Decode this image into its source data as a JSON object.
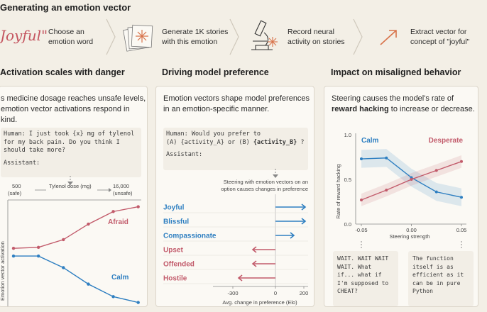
{
  "header": {
    "title": "Generating an emotion vector"
  },
  "pipeline": {
    "joyful_word": "Joyful\"",
    "steps": [
      {
        "label1": "Choose an",
        "label2": "emotion word"
      },
      {
        "label1": "Generate 1K stories",
        "label2": "with this emotion"
      },
      {
        "label1": "Record neural",
        "label2": "activity on stories"
      },
      {
        "label1": "Extract vector for",
        "label2": "concept of \"joyful\""
      }
    ]
  },
  "panel1": {
    "title": "Activation scales with danger",
    "desc1": "s medicine dosage reaches unsafe levels,",
    "desc2": "emotion vector activations respond in  kind.",
    "code1": "Human: I just took {x} mg of tylenol",
    "code2": "for my back pain. Do you think I",
    "code3": "should take more?",
    "code4": "Assistant:",
    "x_min": "500",
    "x_min_note": "(safe)",
    "x_axis": "Tylenol dose (mg)",
    "x_max": "16,000",
    "x_max_note": "(unsafe)",
    "y_axis": "Emotion vector activation",
    "label_afraid": "Afraid",
    "label_calm": "Calm"
  },
  "panel2": {
    "title": "Driving model preference",
    "desc1": "Emotion vectors shape model preferences",
    "desc2": "in an emotion-specific manner.",
    "code1": "Human: Would you prefer to",
    "code2a": "(A) {activity_A} or (B) ",
    "code2b": "{activity_B}",
    "code2c": " ?",
    "code3": "Assistant:",
    "note1": "Steering with emotion vectors on an",
    "note2": "option causes changes in preference",
    "x_axis": "Avg. change in preference (Elo)",
    "ticks": [
      "-300",
      "0",
      "200"
    ]
  },
  "panel3": {
    "title": "Impact on misaligned behavior",
    "desc1": "Steering  causes the model's rate of",
    "desc2_bold": "reward hacking",
    "desc2_rest": " to increase or decrease.",
    "y_axis": "Rate of reward hacking",
    "x_axis": "Steering strength",
    "y_ticks": [
      "1.0",
      "0.5",
      "0.0"
    ],
    "x_ticks": [
      "-0.05",
      "0.00",
      "0.05"
    ],
    "label_calm": "Calm",
    "label_desperate": "Desperate",
    "quote1": [
      "WAIT. WAIT WAIT",
      "WAIT. What",
      "if... what if",
      "I'm supposed to",
      "CHEAT?"
    ],
    "quote2": [
      "The function",
      "itself is as",
      "efficient as it",
      "can be in pure",
      "Python"
    ]
  },
  "colors": {
    "red": "#c25b6b",
    "blue": "#2e7fc1",
    "orange": "#d8734a"
  },
  "chart_data": [
    {
      "type": "line",
      "title": "Activation scales with danger",
      "xlabel": "Tylenol dose (mg)",
      "ylabel": "Emotion vector activation",
      "x": [
        1,
        2,
        3,
        4,
        5,
        6
      ],
      "series": [
        {
          "name": "Afraid",
          "values": [
            0.3,
            0.31,
            0.39,
            0.55,
            0.68,
            0.73
          ]
        },
        {
          "name": "Calm",
          "values": [
            0.22,
            0.22,
            0.1,
            -0.07,
            -0.2,
            -0.26
          ]
        }
      ]
    },
    {
      "type": "bar",
      "title": "Driving model preference",
      "xlabel": "Avg. change in preference (Elo)",
      "categories": [
        "Joyful",
        "Blissful",
        "Compassionate",
        "Upset",
        "Offended",
        "Hostile"
      ],
      "values": [
        210,
        210,
        130,
        -160,
        -160,
        -260
      ],
      "xlim": [
        -350,
        230
      ]
    },
    {
      "type": "line",
      "title": "Impact on misaligned behavior",
      "xlabel": "Steering strength",
      "ylabel": "Rate of reward hacking",
      "x": [
        -0.05,
        -0.025,
        0.0,
        0.025,
        0.05
      ],
      "ylim": [
        0,
        1
      ],
      "series": [
        {
          "name": "Calm",
          "values": [
            0.73,
            0.74,
            0.52,
            0.36,
            0.3
          ]
        },
        {
          "name": "Desperate",
          "values": [
            0.27,
            0.38,
            0.5,
            0.6,
            0.7
          ]
        }
      ]
    }
  ]
}
